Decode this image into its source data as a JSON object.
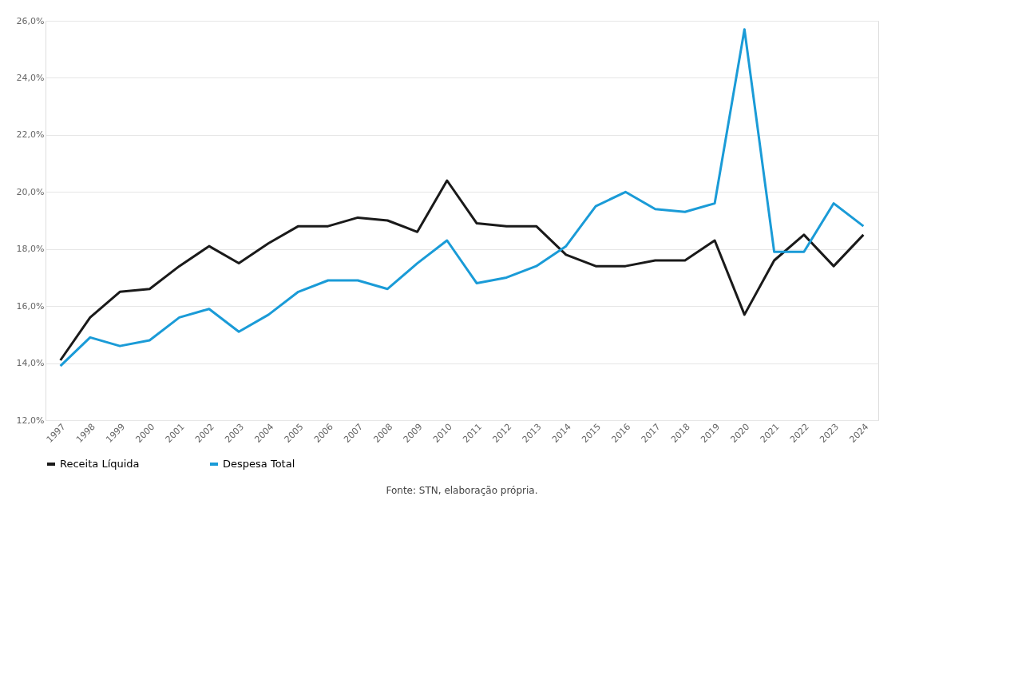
{
  "chart_data": {
    "type": "line",
    "categories": [
      "1997",
      "1998",
      "1999",
      "2000",
      "2001",
      "2002",
      "2003",
      "2004",
      "2005",
      "2006",
      "2007",
      "2008",
      "2009",
      "2010",
      "2011",
      "2012",
      "2013",
      "2014",
      "2015",
      "2016",
      "2017",
      "2018",
      "2019",
      "2020",
      "2021",
      "2022",
      "2023",
      "2024"
    ],
    "series": [
      {
        "name": "Receita Líquida",
        "color": "#1a1a1a",
        "values": [
          14.1,
          15.6,
          16.5,
          16.6,
          17.4,
          18.1,
          17.5,
          18.2,
          18.8,
          18.8,
          19.1,
          19.0,
          18.6,
          20.4,
          18.9,
          18.8,
          18.8,
          17.8,
          17.4,
          17.4,
          17.6,
          17.6,
          18.3,
          15.7,
          17.6,
          18.5,
          17.4,
          18.5
        ]
      },
      {
        "name": "Despesa Total",
        "color": "#1a9bd7",
        "values": [
          13.9,
          14.9,
          14.6,
          14.8,
          15.6,
          15.9,
          15.1,
          15.7,
          16.5,
          16.9,
          16.9,
          16.6,
          17.5,
          18.3,
          16.8,
          17.0,
          17.4,
          18.1,
          19.5,
          20.0,
          19.4,
          19.3,
          19.6,
          25.7,
          17.9,
          17.9,
          19.6,
          18.8
        ]
      }
    ],
    "ylim": [
      12,
      26
    ],
    "yticks": [
      {
        "value": 12,
        "label": "12,0%"
      },
      {
        "value": 14,
        "label": "14,0%"
      },
      {
        "value": 16,
        "label": "16,0%"
      },
      {
        "value": 18,
        "label": "18,0%"
      },
      {
        "value": 20,
        "label": "20,0%"
      },
      {
        "value": 22,
        "label": "22,0%"
      },
      {
        "value": 24,
        "label": "24,0%"
      },
      {
        "value": 26,
        "label": "26,0%"
      }
    ],
    "grid": "y",
    "legend": "bottom",
    "marker": "none",
    "line_style": "solid",
    "annotations": [
      "Fonte: STN, elaboração própria."
    ]
  }
}
